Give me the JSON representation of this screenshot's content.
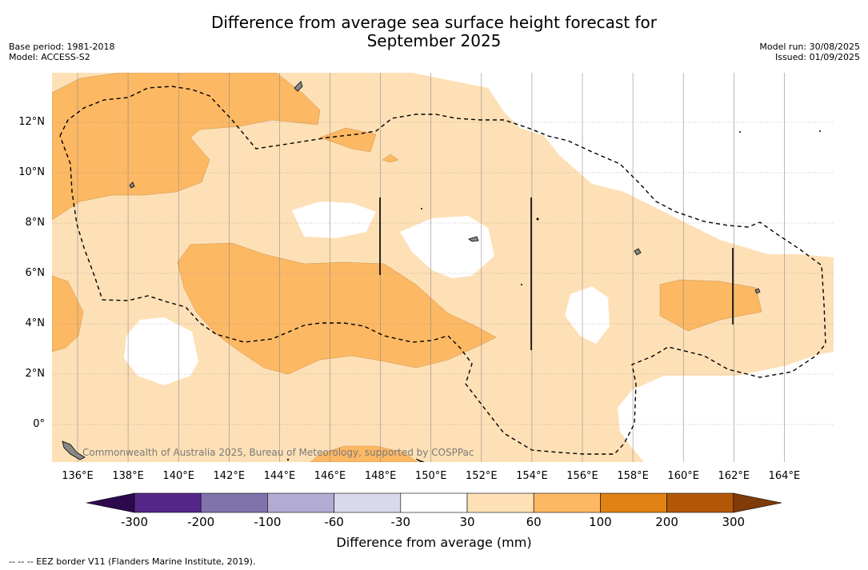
{
  "title_line1": "Difference from average sea surface height forecast for",
  "title_line2": "September 2025",
  "base_period": "Base period: 1981-2018",
  "model": "Model: ACCESS-S2",
  "model_run": "Model run: 30/08/2025",
  "issued": "Issued: 01/09/2025",
  "copyright": "Commonwealth of Australia 2025, Bureau of Meteorology, supported by COSPPac",
  "footnote": "-- -- -- EEZ border V11 (Flanders Marine Institute, 2019).",
  "map": {
    "lat_labels": [
      "12°N",
      "10°N",
      "8°N",
      "6°N",
      "4°N",
      "2°N",
      "0°"
    ],
    "lon_labels": [
      "136°E",
      "138°E",
      "140°E",
      "142°E",
      "144°E",
      "146°E",
      "148°E",
      "150°E",
      "152°E",
      "154°E",
      "156°E",
      "158°E",
      "160°E",
      "162°E",
      "164°E"
    ],
    "grid": true,
    "eez_border_style": "dashed"
  },
  "colorbar": {
    "title": "Difference from average (mm)",
    "tick_labels": [
      "-300",
      "-200",
      "-100",
      "-60",
      "-30",
      "30",
      "60",
      "100",
      "200",
      "300"
    ],
    "colors": [
      "#2d0a4e",
      "#542788",
      "#8073ac",
      "#b2abd2",
      "#d8daeb",
      "#ffffff",
      "#fee0b6",
      "#fdb863",
      "#e08214",
      "#b35806",
      "#7f3b08"
    ]
  }
}
